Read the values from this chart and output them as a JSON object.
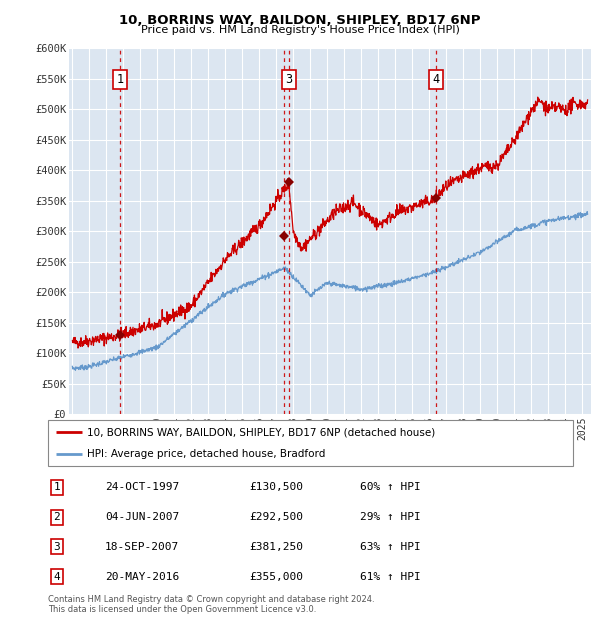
{
  "title1": "10, BORRINS WAY, BAILDON, SHIPLEY, BD17 6NP",
  "title2": "Price paid vs. HM Land Registry's House Price Index (HPI)",
  "plot_bg": "#dce6f1",
  "red_line_color": "#cc0000",
  "blue_line_color": "#6699cc",
  "grid_color": "#ffffff",
  "axis_label_color": "#333333",
  "ylim": [
    0,
    600000
  ],
  "yticks": [
    0,
    50000,
    100000,
    150000,
    200000,
    250000,
    300000,
    350000,
    400000,
    450000,
    500000,
    550000,
    600000
  ],
  "ytick_labels": [
    "£0",
    "£50K",
    "£100K",
    "£150K",
    "£200K",
    "£250K",
    "£300K",
    "£350K",
    "£400K",
    "£450K",
    "£500K",
    "£550K",
    "£600K"
  ],
  "transactions": [
    {
      "num": 1,
      "price": 130500,
      "x_year": 1997.82,
      "show_label": true
    },
    {
      "num": 2,
      "price": 292500,
      "x_year": 2007.42,
      "show_label": false
    },
    {
      "num": 3,
      "price": 381250,
      "x_year": 2007.72,
      "show_label": true
    },
    {
      "num": 4,
      "price": 355000,
      "x_year": 2016.38,
      "show_label": true
    }
  ],
  "legend_entries": [
    "10, BORRINS WAY, BAILDON, SHIPLEY, BD17 6NP (detached house)",
    "HPI: Average price, detached house, Bradford"
  ],
  "table_rows": [
    [
      "1",
      "24-OCT-1997",
      "£130,500",
      "60% ↑ HPI"
    ],
    [
      "2",
      "04-JUN-2007",
      "£292,500",
      "29% ↑ HPI"
    ],
    [
      "3",
      "18-SEP-2007",
      "£381,250",
      "63% ↑ HPI"
    ],
    [
      "4",
      "20-MAY-2016",
      "£355,000",
      "61% ↑ HPI"
    ]
  ],
  "footer": "Contains HM Land Registry data © Crown copyright and database right 2024.\nThis data is licensed under the Open Government Licence v3.0.",
  "xmin": 1994.8,
  "xmax": 2025.5
}
